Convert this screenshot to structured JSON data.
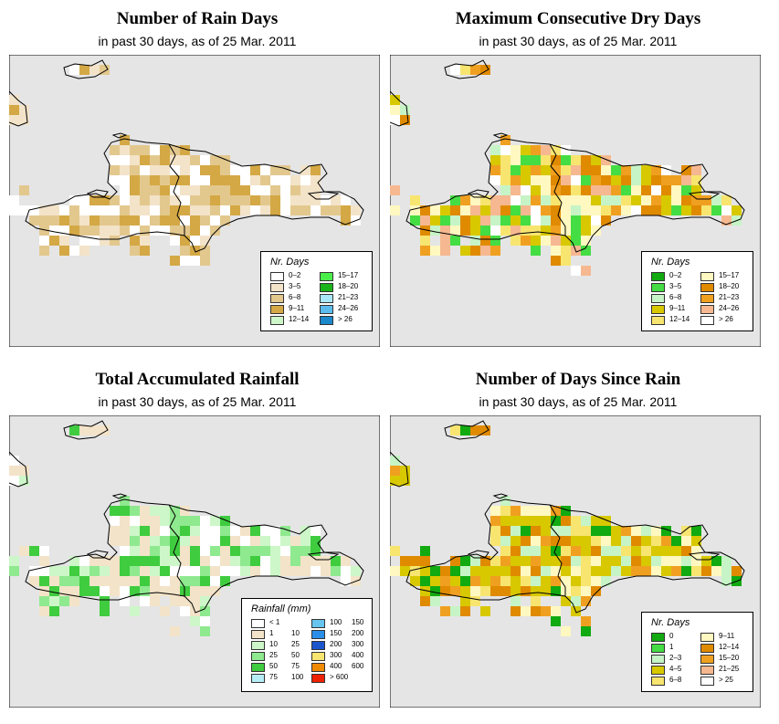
{
  "panels": [
    {
      "title": "Number of Rain Days",
      "subtitle": "in past 30 days, as of  25 Mar. 2011",
      "legend": {
        "title": "Nr. Days",
        "items": [
          {
            "label": "0–2",
            "color": "#ffffff"
          },
          {
            "label": "3–5",
            "color": "#f3e3c8"
          },
          {
            "label": "6–8",
            "color": "#e3c88e"
          },
          {
            "label": "9–11",
            "color": "#d4a845"
          },
          {
            "label": "12–14",
            "color": "#cdf7c8"
          },
          {
            "label": "15–17",
            "color": "#4aee4a"
          },
          {
            "label": "18–20",
            "color": "#1bb41b"
          },
          {
            "label": "21–23",
            "color": "#a8e8f8"
          },
          {
            "label": "24–26",
            "color": "#5cbcee"
          },
          {
            "label": "> 26",
            "color": "#1b88cc"
          }
        ]
      },
      "palette": [
        "#ffffff",
        "#f3e3c8",
        "#e3c88e",
        "#d4a845"
      ],
      "seed": 3
    },
    {
      "title": "Maximum Consecutive Dry Days",
      "subtitle": "in past 30 days, as of  25 Mar. 2011",
      "legend": {
        "title": "Nr. Days",
        "items": [
          {
            "label": "0–2",
            "color": "#11aa11"
          },
          {
            "label": "3–5",
            "color": "#44dd44"
          },
          {
            "label": "6–8",
            "color": "#c6f4c6"
          },
          {
            "label": "9–11",
            "color": "#d8c800"
          },
          {
            "label": "12–14",
            "color": "#f7e570"
          },
          {
            "label": "15–17",
            "color": "#fff8c0"
          },
          {
            "label": "18–20",
            "color": "#e08a00"
          },
          {
            "label": "21–23",
            "color": "#f0a020"
          },
          {
            "label": "24–26",
            "color": "#f6b890"
          },
          {
            "label": "> 26",
            "color": "#ffffff"
          }
        ]
      },
      "palette": [
        "#fff8c0",
        "#f7e570",
        "#f0a020",
        "#e08a00",
        "#d8c800",
        "#ffffff",
        "#f6b890",
        "#c6f4c6",
        "#44dd44"
      ],
      "seed": 7
    },
    {
      "title": "Total Accumulated Rainfall",
      "subtitle": "in past 30 days, as of  25 Mar. 2011",
      "legend": {
        "title": "Rainfall (mm)",
        "items": [
          {
            "label": "< 1",
            "label2": "",
            "color": "#ffffff"
          },
          {
            "label": "1",
            "label2": "10",
            "color": "#f3e3c8"
          },
          {
            "label": "10",
            "label2": "25",
            "color": "#cdf7c8"
          },
          {
            "label": "25",
            "label2": "50",
            "color": "#8fe98f"
          },
          {
            "label": "50",
            "label2": "75",
            "color": "#3fcc3f"
          },
          {
            "label": "75",
            "label2": "100",
            "color": "#b6eef8"
          },
          {
            "label": "100",
            "label2": "150",
            "color": "#66c4ee"
          },
          {
            "label": "150",
            "label2": "200",
            "color": "#2a8ee8"
          },
          {
            "label": "200",
            "label2": "300",
            "color": "#1a55cc"
          },
          {
            "label": "300",
            "label2": "400",
            "color": "#f7e570"
          },
          {
            "label": "400",
            "label2": "600",
            "color": "#f08a00"
          },
          {
            "label": "> 600",
            "label2": "",
            "color": "#ee2200"
          }
        ]
      },
      "palette": [
        "#f3e3c8",
        "#f3e3c8",
        "#cdf7c8",
        "#8fe98f",
        "#ffffff",
        "#3fcc3f"
      ],
      "seed": 11
    },
    {
      "title": "Number of Days Since Rain",
      "subtitle": "in past 30 days, as of  25 Mar. 2011",
      "legend": {
        "title": "Nr. Days",
        "items": [
          {
            "label": "0",
            "color": "#11aa11"
          },
          {
            "label": "1",
            "color": "#44dd44"
          },
          {
            "label": "2–3",
            "color": "#c6f4c6"
          },
          {
            "label": "4–5",
            "color": "#d8c800"
          },
          {
            "label": "6–8",
            "color": "#f7e570"
          },
          {
            "label": "9–11",
            "color": "#fff8c0"
          },
          {
            "label": "12–14",
            "color": "#e08a00"
          },
          {
            "label": "15–20",
            "color": "#f0a020"
          },
          {
            "label": "21–25",
            "color": "#f6b890"
          },
          {
            "label": "> 25",
            "color": "#ffffff"
          }
        ]
      },
      "palette": [
        "#d8c800",
        "#d8c800",
        "#c6f4c6",
        "#f0a020",
        "#f7e570",
        "#11aa11",
        "#e08a00",
        "#fff8c0"
      ],
      "seed": 19
    }
  ]
}
